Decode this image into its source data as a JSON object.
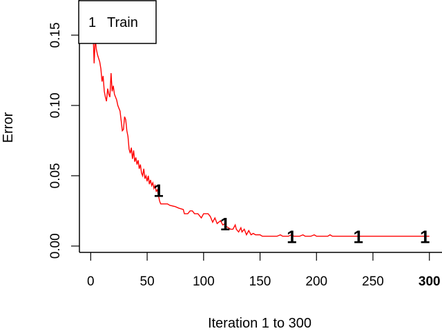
{
  "chart_data": {
    "type": "line",
    "title": "",
    "xlabel": "Iteration 1 to 300",
    "ylabel": "Error",
    "xlim": [
      -10,
      302
    ],
    "ylim": [
      -0.0045,
      0.175
    ],
    "x_ticks": [
      0,
      50,
      100,
      150,
      200,
      250,
      300
    ],
    "x_tick_labels": [
      "0",
      "50",
      "100",
      "150",
      "200",
      "250",
      "300"
    ],
    "x_tick_bold": [
      false,
      false,
      false,
      false,
      false,
      false,
      true
    ],
    "y_ticks": [
      0.0,
      0.05,
      0.1,
      0.15
    ],
    "y_tick_labels": [
      "0.00",
      "0.05",
      "0.10",
      "0.15"
    ],
    "grid": false,
    "legend": {
      "position": "top-left",
      "entries": [
        {
          "symbol": "1",
          "label": "Train"
        }
      ]
    },
    "line_color": "#ff0000",
    "series": [
      {
        "name": "Train",
        "symbol": "1",
        "color": "#ff0000",
        "marker_x": [
          60,
          119,
          178,
          237,
          296
        ],
        "marker_y": [
          0.04,
          0.016,
          0.007,
          0.007,
          0.007
        ],
        "points": [
          [
            1,
            0.17
          ],
          [
            2,
            0.155
          ],
          [
            3,
            0.13
          ],
          [
            4,
            0.148
          ],
          [
            5,
            0.14
          ],
          [
            6,
            0.136
          ],
          [
            8,
            0.131
          ],
          [
            9,
            0.126
          ],
          [
            10,
            0.117
          ],
          [
            11,
            0.121
          ],
          [
            12,
            0.11
          ],
          [
            13,
            0.106
          ],
          [
            14,
            0.103
          ],
          [
            15,
            0.112
          ],
          [
            16,
            0.108
          ],
          [
            17,
            0.106
          ],
          [
            18,
            0.123
          ],
          [
            19,
            0.11
          ],
          [
            20,
            0.114
          ],
          [
            21,
            0.108
          ],
          [
            22,
            0.106
          ],
          [
            23,
            0.104
          ],
          [
            24,
            0.1
          ],
          [
            25,
            0.098
          ],
          [
            26,
            0.096
          ],
          [
            27,
            0.089
          ],
          [
            28,
            0.082
          ],
          [
            29,
            0.083
          ],
          [
            30,
            0.092
          ],
          [
            31,
            0.09
          ],
          [
            32,
            0.082
          ],
          [
            33,
            0.078
          ],
          [
            34,
            0.069
          ],
          [
            35,
            0.066
          ],
          [
            36,
            0.07
          ],
          [
            37,
            0.062
          ],
          [
            38,
            0.068
          ],
          [
            39,
            0.06
          ],
          [
            40,
            0.063
          ],
          [
            41,
            0.058
          ],
          [
            42,
            0.061
          ],
          [
            43,
            0.055
          ],
          [
            44,
            0.058
          ],
          [
            45,
            0.052
          ],
          [
            46,
            0.05
          ],
          [
            47,
            0.055
          ],
          [
            48,
            0.048
          ],
          [
            49,
            0.05
          ],
          [
            50,
            0.046
          ],
          [
            51,
            0.05
          ],
          [
            52,
            0.044
          ],
          [
            53,
            0.047
          ],
          [
            54,
            0.043
          ],
          [
            55,
            0.045
          ],
          [
            56,
            0.041
          ],
          [
            57,
            0.043
          ],
          [
            58,
            0.039
          ],
          [
            59,
            0.04
          ],
          [
            60,
            0.036
          ],
          [
            61,
            0.032
          ],
          [
            62,
            0.03
          ],
          [
            65,
            0.03
          ],
          [
            68,
            0.03
          ],
          [
            70,
            0.029
          ],
          [
            75,
            0.028
          ],
          [
            78,
            0.027
          ],
          [
            82,
            0.026
          ],
          [
            83,
            0.023
          ],
          [
            86,
            0.023
          ],
          [
            88,
            0.025
          ],
          [
            90,
            0.025
          ],
          [
            92,
            0.023
          ],
          [
            95,
            0.023
          ],
          [
            98,
            0.02
          ],
          [
            100,
            0.023
          ],
          [
            104,
            0.023
          ],
          [
            106,
            0.021
          ],
          [
            108,
            0.017
          ],
          [
            110,
            0.02
          ],
          [
            112,
            0.016
          ],
          [
            115,
            0.018
          ],
          [
            117,
            0.015
          ],
          [
            119,
            0.016
          ],
          [
            120,
            0.014
          ],
          [
            122,
            0.013
          ],
          [
            124,
            0.012
          ],
          [
            126,
            0.012
          ],
          [
            128,
            0.015
          ],
          [
            129,
            0.012
          ],
          [
            131,
            0.01
          ],
          [
            133,
            0.013
          ],
          [
            134,
            0.01
          ],
          [
            136,
            0.012
          ],
          [
            138,
            0.008
          ],
          [
            140,
            0.011
          ],
          [
            142,
            0.008
          ],
          [
            144,
            0.009
          ],
          [
            146,
            0.008
          ],
          [
            148,
            0.008
          ],
          [
            150,
            0.008
          ],
          [
            152,
            0.007
          ],
          [
            155,
            0.007
          ],
          [
            160,
            0.007
          ],
          [
            165,
            0.007
          ],
          [
            168,
            0.008
          ],
          [
            170,
            0.007
          ],
          [
            175,
            0.007
          ],
          [
            178,
            0.008
          ],
          [
            180,
            0.007
          ],
          [
            185,
            0.007
          ],
          [
            188,
            0.008
          ],
          [
            190,
            0.007
          ],
          [
            195,
            0.007
          ],
          [
            198,
            0.008
          ],
          [
            200,
            0.007
          ],
          [
            205,
            0.007
          ],
          [
            210,
            0.007
          ],
          [
            212,
            0.008
          ],
          [
            214,
            0.007
          ],
          [
            220,
            0.007
          ],
          [
            230,
            0.007
          ],
          [
            240,
            0.007
          ],
          [
            250,
            0.007
          ],
          [
            260,
            0.007
          ],
          [
            270,
            0.007
          ],
          [
            280,
            0.007
          ],
          [
            290,
            0.007
          ],
          [
            300,
            0.007
          ]
        ]
      }
    ]
  }
}
